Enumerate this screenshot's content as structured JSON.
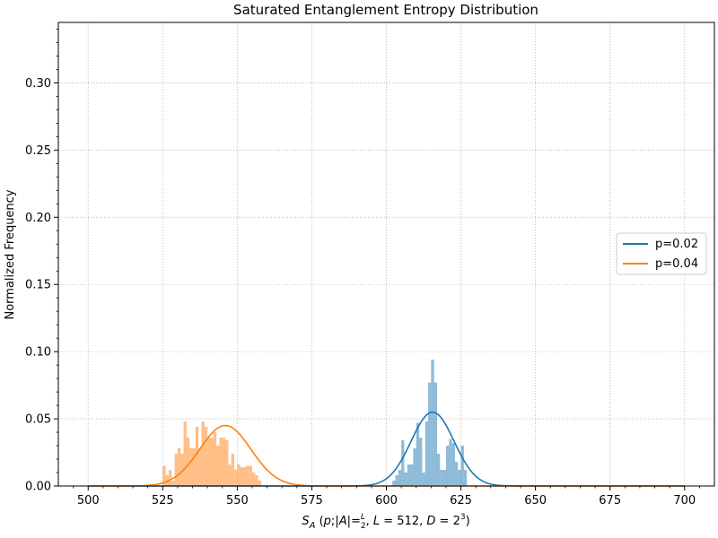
{
  "chart_data": {
    "type": "bar",
    "title": "Saturated Entanglement Entropy Distribution",
    "ylabel": "Normalized Frequency",
    "xlabel": {
      "symbol": "S",
      "sub": "A",
      "open": " (",
      "p": "p",
      "semi": ";|",
      "A": "A",
      "eqbar": "|=",
      "frac_num": "L",
      "frac_den": "2",
      "comma1": ", ",
      "L": "L",
      "eq512": " = 512, ",
      "D": "D",
      "eq2": " = 2",
      "exp": "3",
      "close": ")"
    },
    "xlim": [
      490,
      710
    ],
    "ylim": [
      0,
      0.345
    ],
    "xticks": [
      500,
      525,
      550,
      575,
      600,
      625,
      650,
      675,
      700
    ],
    "yticks": [
      0.0,
      0.05,
      0.1,
      0.15,
      0.2,
      0.25,
      0.3
    ],
    "ytick_labels": [
      "0.00",
      "0.05",
      "0.10",
      "0.15",
      "0.20",
      "0.25",
      "0.30"
    ],
    "grid": true,
    "legend_position": "center-right",
    "series": [
      {
        "name": "p=0.02",
        "color": "#1f77b4",
        "hist_color": "#1f77b4",
        "bin_width": 1,
        "bins": [
          [
            602,
            0.004
          ],
          [
            603,
            0.008
          ],
          [
            604,
            0.012
          ],
          [
            605,
            0.034
          ],
          [
            606,
            0.01
          ],
          [
            607,
            0.016
          ],
          [
            608,
            0.016
          ],
          [
            609,
            0.028
          ],
          [
            610,
            0.047
          ],
          [
            611,
            0.036
          ],
          [
            612,
            0.01
          ],
          [
            613,
            0.048
          ],
          [
            614,
            0.077
          ],
          [
            615,
            0.094
          ],
          [
            616,
            0.077
          ],
          [
            617,
            0.024
          ],
          [
            618,
            0.012
          ],
          [
            619,
            0.012
          ],
          [
            620,
            0.03
          ],
          [
            621,
            0.035
          ],
          [
            622,
            0.032
          ],
          [
            623,
            0.018
          ],
          [
            624,
            0.012
          ],
          [
            625,
            0.03
          ],
          [
            626,
            0.012
          ]
        ],
        "fit": {
          "mean": 615.5,
          "sigma": 7.2,
          "peak": 0.055,
          "x_range": [
            500,
            700
          ]
        }
      },
      {
        "name": "p=0.04",
        "color": "#ff7f0e",
        "hist_color": "#ff7f0e",
        "bin_width": 1,
        "bins": [
          [
            525,
            0.015
          ],
          [
            526,
            0.008
          ],
          [
            527,
            0.012
          ],
          [
            528,
            0.004
          ],
          [
            529,
            0.024
          ],
          [
            530,
            0.028
          ],
          [
            531,
            0.024
          ],
          [
            532,
            0.048
          ],
          [
            533,
            0.036
          ],
          [
            534,
            0.028
          ],
          [
            535,
            0.028
          ],
          [
            536,
            0.044
          ],
          [
            537,
            0.028
          ],
          [
            538,
            0.048
          ],
          [
            539,
            0.044
          ],
          [
            540,
            0.036
          ],
          [
            541,
            0.036
          ],
          [
            542,
            0.04
          ],
          [
            543,
            0.03
          ],
          [
            544,
            0.036
          ],
          [
            545,
            0.036
          ],
          [
            546,
            0.034
          ],
          [
            547,
            0.016
          ],
          [
            548,
            0.024
          ],
          [
            549,
            0.012
          ],
          [
            550,
            0.016
          ],
          [
            551,
            0.014
          ],
          [
            552,
            0.014
          ],
          [
            553,
            0.015
          ],
          [
            554,
            0.015
          ],
          [
            555,
            0.01
          ],
          [
            556,
            0.008
          ],
          [
            557,
            0.004
          ]
        ],
        "fit": {
          "mean": 546.0,
          "sigma": 8.6,
          "peak": 0.045,
          "x_range": [
            500,
            700
          ]
        }
      }
    ]
  }
}
